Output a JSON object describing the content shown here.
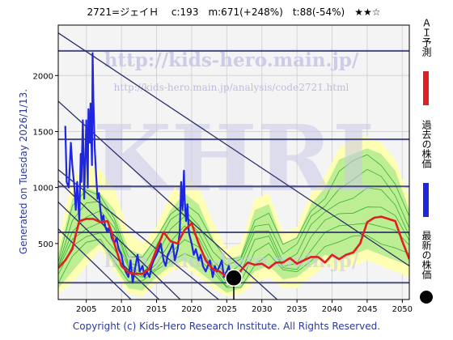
{
  "header": {
    "title": "2721=ジェイＨ　 c:193　m:671(+248%)　t:88(-54%)　★★☆"
  },
  "side": {
    "generated": "Generated on Tuesday 2026/1/13."
  },
  "footer": {
    "copyright": "Copyright (c) Kids-Hero Research Institute. All Rights Reserved."
  },
  "watermark": {
    "big": "KHRI",
    "url1": "http://kids-hero.main.jp/",
    "url2": "http://kids-hero.main.jp/analysis/code2721.html",
    "url3": "http://kids-hero.main.jp/"
  },
  "legend": [
    {
      "label": "ＡＩ予測",
      "color": "#e02020",
      "marker": "line"
    },
    {
      "label": "過去の株価",
      "color": "#1f26e0",
      "marker": "line"
    },
    {
      "label": "最新の株価",
      "color": "#000000",
      "marker": "dot"
    }
  ],
  "colors": {
    "plot_bg": "#f4f4f4",
    "band_yellow": "#ffffb0",
    "band_green": "#a8e88a",
    "band_lines": "#26a826",
    "channel": "#2b2f6b",
    "price": "#1f26e0",
    "prediction": "#e02020",
    "watermark": "#c8c8e8"
  },
  "chart_data": {
    "type": "line",
    "xlim": [
      2001,
      2051
    ],
    "ylim": [
      0,
      2450
    ],
    "xticks": [
      2005,
      2010,
      2015,
      2020,
      2025,
      2030,
      2035,
      2040,
      2045,
      2050
    ],
    "yticks": [
      500,
      1000,
      1500,
      2000
    ],
    "grid": true,
    "latest": {
      "x": 2026.0,
      "y": 193
    },
    "horizontal_lines": [
      2220,
      1430,
      1010,
      600,
      150
    ],
    "channel_lines": [
      {
        "x1": 2001,
        "y1": 2380,
        "x2": 2051,
        "y2": 300
      },
      {
        "x1": 2001,
        "y1": 1770,
        "x2": 2035,
        "y2": -160
      },
      {
        "x1": 2001,
        "y1": 1160,
        "x2": 2027,
        "y2": -160
      },
      {
        "x1": 2001,
        "y1": 1060,
        "x2": 2021,
        "y2": -160
      },
      {
        "x1": 2001,
        "y1": 870,
        "x2": 2018,
        "y2": -160
      },
      {
        "x1": 2001,
        "y1": 630,
        "x2": 2014,
        "y2": -160
      }
    ],
    "series": [
      {
        "name": "過去の株価",
        "x": [
          2002.0,
          2002.2,
          2002.5,
          2002.8,
          2003.0,
          2003.3,
          2003.5,
          2003.7,
          2004.0,
          2004.2,
          2004.3,
          2004.5,
          2004.7,
          2005.0,
          2005.2,
          2005.3,
          2005.5,
          2005.6,
          2005.8,
          2005.9,
          2006.0,
          2006.2,
          2006.4,
          2006.6,
          2006.8,
          2007.0,
          2007.2,
          2007.4,
          2007.7,
          2008.0,
          2008.3,
          2008.6,
          2009.0,
          2009.3,
          2009.6,
          2010.0,
          2010.3,
          2010.6,
          2011.0,
          2011.3,
          2011.6,
          2012.0,
          2012.3,
          2012.6,
          2013.0,
          2013.3,
          2013.6,
          2014.0,
          2014.3,
          2014.6,
          2015.0,
          2015.3,
          2015.6,
          2016.0,
          2016.3,
          2016.6,
          2017.0,
          2017.3,
          2017.6,
          2018.0,
          2018.3,
          2018.5,
          2018.7,
          2018.9,
          2019.0,
          2019.2,
          2019.4,
          2019.6,
          2020.0,
          2020.3,
          2020.6,
          2021.0,
          2021.3,
          2021.6,
          2022.0,
          2022.3,
          2022.6,
          2023.0,
          2023.3,
          2023.6,
          2024.0,
          2024.3,
          2024.6,
          2025.0,
          2025.3,
          2025.6,
          2026.0
        ],
        "values": [
          1550,
          1050,
          1000,
          1400,
          1200,
          1000,
          800,
          1050,
          700,
          1300,
          1050,
          1600,
          900,
          1600,
          1000,
          1700,
          1400,
          1750,
          1200,
          2200,
          1800,
          1350,
          1100,
          900,
          950,
          800,
          700,
          750,
          650,
          600,
          650,
          550,
          500,
          550,
          450,
          400,
          300,
          250,
          200,
          350,
          150,
          300,
          400,
          250,
          300,
          200,
          250,
          200,
          300,
          350,
          400,
          450,
          500,
          350,
          300,
          400,
          450,
          500,
          350,
          450,
          600,
          1050,
          800,
          1150,
          900,
          700,
          850,
          600,
          500,
          400,
          450,
          350,
          400,
          300,
          250,
          300,
          350,
          200,
          300,
          250,
          300,
          350,
          200,
          250,
          300,
          200,
          193
        ]
      },
      {
        "name": "ＡＩ予測",
        "x": [
          2001.0,
          2002.0,
          2003.0,
          2003.5,
          2004.0,
          2005.0,
          2006.0,
          2007.0,
          2008.0,
          2008.5,
          2009.0,
          2010.0,
          2011.0,
          2012.0,
          2013.0,
          2014.0,
          2015.0,
          2016.0,
          2017.0,
          2018.0,
          2019.0,
          2020.0,
          2021.0,
          2022.0,
          2023.0,
          2024.0,
          2025.0,
          2026.0,
          2027.0,
          2028.0,
          2029.0,
          2030.0,
          2031.0,
          2032.0,
          2033.0,
          2034.0,
          2035.0,
          2036.0,
          2037.0,
          2038.0,
          2039.0,
          2040.0,
          2041.0,
          2042.0,
          2043.0,
          2044.0,
          2045.0,
          2046.0,
          2047.0,
          2048.0,
          2049.0,
          2050.0,
          2051.0
        ],
        "values": [
          280,
          350,
          450,
          580,
          700,
          720,
          720,
          690,
          700,
          620,
          500,
          300,
          240,
          230,
          230,
          280,
          450,
          600,
          520,
          500,
          620,
          680,
          500,
          350,
          270,
          250,
          200,
          170,
          260,
          330,
          310,
          320,
          280,
          330,
          330,
          370,
          320,
          350,
          380,
          380,
          330,
          400,
          360,
          400,
          420,
          500,
          690,
          730,
          740,
          720,
          700,
          520,
          360
        ]
      }
    ],
    "bands": [
      {
        "name": "yellow",
        "x": [
          2001,
          2003,
          2005,
          2007,
          2009,
          2011,
          2013,
          2015,
          2017,
          2019,
          2021,
          2023,
          2025,
          2027,
          2029,
          2031,
          2033,
          2035,
          2037,
          2039,
          2041,
          2043,
          2045,
          2047,
          2049,
          2051
        ],
        "upper": [
          500,
          1100,
          1200,
          1150,
          1000,
          600,
          500,
          650,
          950,
          1100,
          1000,
          700,
          450,
          500,
          900,
          950,
          600,
          650,
          950,
          1100,
          1350,
          1450,
          1450,
          1400,
          1250,
          900
        ],
        "lower": [
          50,
          150,
          300,
          450,
          250,
          50,
          30,
          150,
          250,
          300,
          200,
          100,
          30,
          50,
          150,
          200,
          100,
          100,
          200,
          300,
          250,
          300,
          350,
          300,
          250,
          200
        ]
      },
      {
        "name": "green",
        "x": [
          2001,
          2003,
          2005,
          2007,
          2009,
          2011,
          2013,
          2015,
          2017,
          2019,
          2021,
          2023,
          2025,
          2027,
          2029,
          2031,
          2033,
          2035,
          2037,
          2039,
          2041,
          2043,
          2045,
          2047,
          2049,
          2051
        ],
        "upper": [
          400,
          900,
          1000,
          950,
          800,
          450,
          400,
          550,
          800,
          950,
          850,
          550,
          350,
          400,
          800,
          850,
          500,
          550,
          850,
          1000,
          1250,
          1300,
          1350,
          1300,
          1150,
          800
        ],
        "lower": [
          100,
          250,
          400,
          500,
          300,
          100,
          80,
          200,
          300,
          350,
          250,
          150,
          60,
          100,
          250,
          300,
          180,
          200,
          300,
          400,
          350,
          400,
          450,
          400,
          350,
          300
        ]
      }
    ]
  }
}
